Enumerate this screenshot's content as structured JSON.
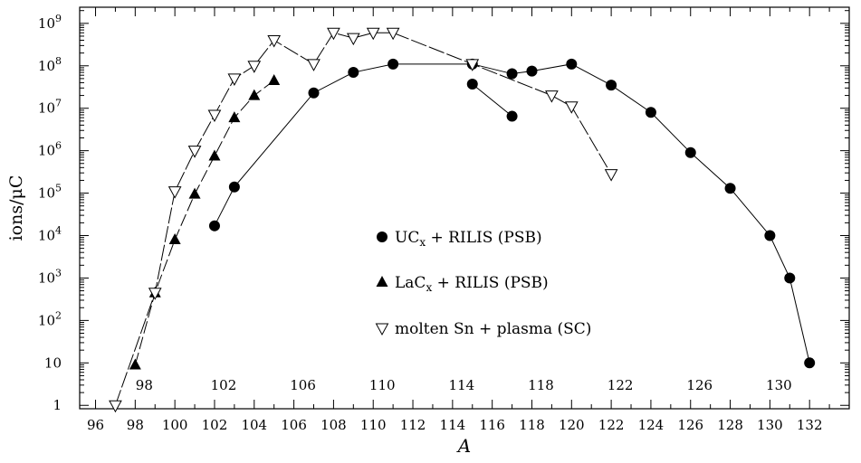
{
  "chart_data": {
    "type": "scatter",
    "xlabel": "A",
    "ylabel": "ions/μC",
    "xlim": [
      95.2,
      134.0
    ],
    "ylim_log10": [
      -0.08,
      9.38
    ],
    "x_log": false,
    "y_log": true,
    "grid": false,
    "legend_placement": "center",
    "x_ticks_bottom": [
      "96",
      "98",
      "100",
      "102",
      "104",
      "106",
      "108",
      "110",
      "112",
      "114",
      "116",
      "118",
      "120",
      "122",
      "124",
      "126",
      "128",
      "130",
      "132"
    ],
    "x_ticks_bottom_values": [
      96,
      98,
      100,
      102,
      104,
      106,
      108,
      110,
      112,
      114,
      116,
      118,
      120,
      122,
      124,
      126,
      128,
      130,
      132
    ],
    "x_ticks_inner": [
      "98",
      "102",
      "106",
      "110",
      "114",
      "118",
      "122",
      "126",
      "130"
    ],
    "x_ticks_inner_values": [
      98,
      102,
      106,
      110,
      114,
      118,
      122,
      126,
      130
    ],
    "y_ticks": [
      {
        "value": 1,
        "base": "1",
        "exp": ""
      },
      {
        "value": 10,
        "base": "10",
        "exp": ""
      },
      {
        "value": 100,
        "base": "10",
        "exp": "2"
      },
      {
        "value": 1000,
        "base": "10",
        "exp": "3"
      },
      {
        "value": 10000,
        "base": "10",
        "exp": "4"
      },
      {
        "value": 100000,
        "base": "10",
        "exp": "5"
      },
      {
        "value": 1000000,
        "base": "10",
        "exp": "6"
      },
      {
        "value": 10000000,
        "base": "10",
        "exp": "7"
      },
      {
        "value": 100000000,
        "base": "10",
        "exp": "8"
      },
      {
        "value": 1000000000,
        "base": "10",
        "exp": "9"
      }
    ],
    "series": [
      {
        "name": "UCx + RILIS (PSB)",
        "legend_parts": [
          "UC",
          "x",
          " + RILIS (PSB)"
        ],
        "marker": "circle",
        "segments": [
          [
            [
              102,
              17000
            ],
            [
              103,
              140000
            ],
            [
              107,
              23000000
            ],
            [
              109,
              70000000
            ],
            [
              111,
              110000000
            ],
            [
              115,
              110000000
            ],
            [
              117,
              65000000
            ],
            [
              118,
              75000000
            ],
            [
              120,
              110000000
            ],
            [
              122,
              35000000
            ],
            [
              124,
              8000000
            ],
            [
              126,
              900000
            ],
            [
              128,
              130000
            ],
            [
              130,
              10000
            ],
            [
              131,
              1000
            ],
            [
              132,
              10
            ]
          ],
          [
            [
              115,
              37000000
            ],
            [
              117,
              6500000
            ]
          ]
        ]
      },
      {
        "name": "LaCx + RILIS (PSB)",
        "legend_parts": [
          "LaC",
          "x",
          " + RILIS (PSB)"
        ],
        "marker": "triangle-up",
        "segments": [
          [
            [
              98,
              9
            ],
            [
              99,
              450
            ],
            [
              100,
              8000
            ],
            [
              101,
              95000
            ],
            [
              102,
              750000
            ],
            [
              103,
              6000000
            ],
            [
              104,
              20000000
            ],
            [
              105,
              45000000
            ]
          ]
        ]
      },
      {
        "name": "molten Sn + plasma (SC)",
        "legend_parts": [
          "molten Sn + plasma (SC)"
        ],
        "marker": "triangle-down-open",
        "segments": [
          [
            [
              97,
              1
            ],
            [
              99,
              450
            ],
            [
              100,
              110000
            ],
            [
              101,
              1000000
            ],
            [
              102,
              7000000
            ],
            [
              103,
              50000000
            ],
            [
              104,
              100000000
            ],
            [
              105,
              400000000
            ],
            [
              107,
              110000000
            ],
            [
              108,
              600000000
            ],
            [
              109,
              450000000
            ],
            [
              110,
              600000000
            ],
            [
              111,
              600000000
            ],
            [
              115,
              110000000
            ],
            [
              119,
              20000000
            ],
            [
              120,
              11000000
            ],
            [
              122,
              280000
            ]
          ]
        ]
      }
    ]
  }
}
